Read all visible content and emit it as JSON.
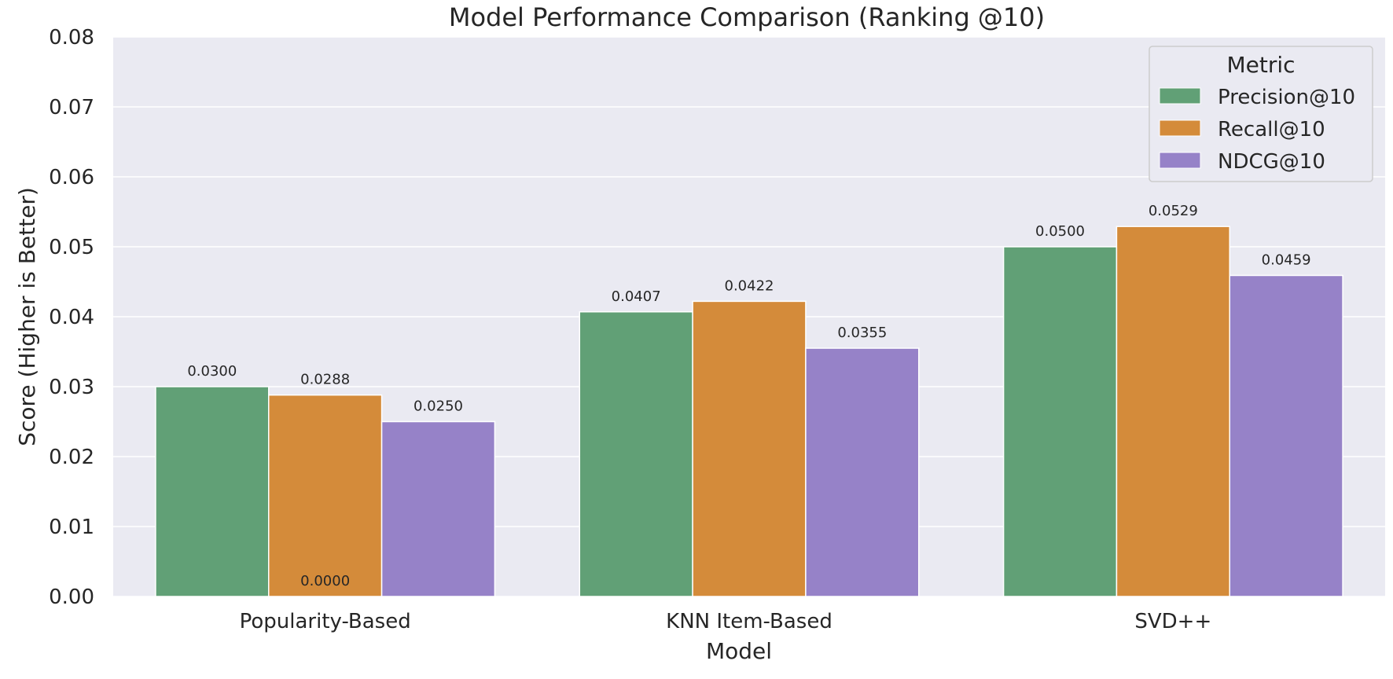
{
  "chart_data": {
    "type": "bar",
    "title": "Model Performance Comparison (Ranking @10)",
    "xlabel": "Model",
    "ylabel": "Score (Higher is Better)",
    "categories": [
      "Popularity-Based",
      "KNN Item-Based",
      "SVD++"
    ],
    "series": [
      {
        "name": "Precision@10",
        "color": "#61a076",
        "values": [
          0.03,
          0.0407,
          0.05
        ]
      },
      {
        "name": "Recall@10",
        "color": "#d48b3a",
        "values": [
          0.0288,
          0.0422,
          0.0529
        ]
      },
      {
        "name": "NDCG@10",
        "color": "#9682c8",
        "values": [
          0.025,
          0.0355,
          0.0459
        ]
      }
    ],
    "data_labels": [
      [
        "0.0300",
        "0.0407",
        "0.0500"
      ],
      [
        "0.0288",
        "0.0422",
        "0.0529"
      ],
      [
        "0.0250",
        "0.0355",
        "0.0459"
      ]
    ],
    "extra_annotation": {
      "text": "0.0000",
      "category_index": 0,
      "series_index": 1,
      "value": 0
    },
    "ylim": [
      0,
      0.08
    ],
    "yticks": [
      "0.00",
      "0.01",
      "0.02",
      "0.03",
      "0.04",
      "0.05",
      "0.06",
      "0.07",
      "0.08"
    ],
    "grid": true,
    "background_color": "#eaeaf2",
    "legend": {
      "title": "Metric",
      "placement": "top-right"
    }
  }
}
